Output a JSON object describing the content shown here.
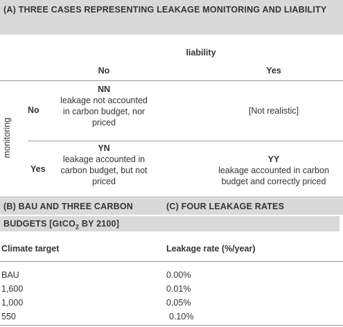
{
  "panel_a": {
    "title": "(A) THREE CASES REPRESENTING LEAKAGE MONITORING AND LIABILITY",
    "column_group": "liability",
    "row_group": "monitoring",
    "columns": [
      "No",
      "Yes"
    ],
    "rows": [
      "No",
      "Yes"
    ],
    "cells": [
      [
        {
          "code": "NN",
          "lines": [
            "leakage not accounted",
            "in carbon budget, nor",
            "priced"
          ]
        },
        {
          "code": null,
          "lines": [
            "[Not realistic]"
          ]
        }
      ],
      [
        {
          "code": "YN",
          "lines": [
            "leakage accounted in",
            "carbon budget, but not",
            "priced"
          ]
        },
        {
          "code": "YY",
          "lines": [
            "leakage accounted in carbon",
            "budget and correctly priced"
          ]
        }
      ]
    ]
  },
  "panel_bc": {
    "title_b": [
      "(B) BAU AND THREE CARBON",
      "BUDGETS [GtCO",
      "2",
      " BY 2100]"
    ],
    "title_c": "(C) FOUR LEAKAGE RATES",
    "header": [
      "Climate target",
      "Leakage rate (%/year)"
    ],
    "rows": [
      [
        "BAU",
        "0.00%"
      ],
      [
        "1,600",
        "0.01%"
      ],
      [
        "1,000",
        "0.05%"
      ],
      [
        "550",
        "0.10%"
      ]
    ]
  }
}
